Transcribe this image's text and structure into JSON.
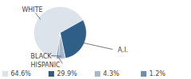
{
  "chart_data": {
    "type": "pie",
    "categories": [
      "WHITE",
      "A.I.",
      "BLACK",
      "HISPANIC"
    ],
    "values": [
      64.6,
      29.9,
      4.3,
      1.2
    ],
    "value_labels": [
      "64.6%",
      "29.9%",
      "4.3%",
      "1.2%"
    ],
    "colors": [
      "#dde3ea",
      "#2f5f86",
      "#a6b8ca",
      "#6d8dad"
    ],
    "data_labels": true
  }
}
